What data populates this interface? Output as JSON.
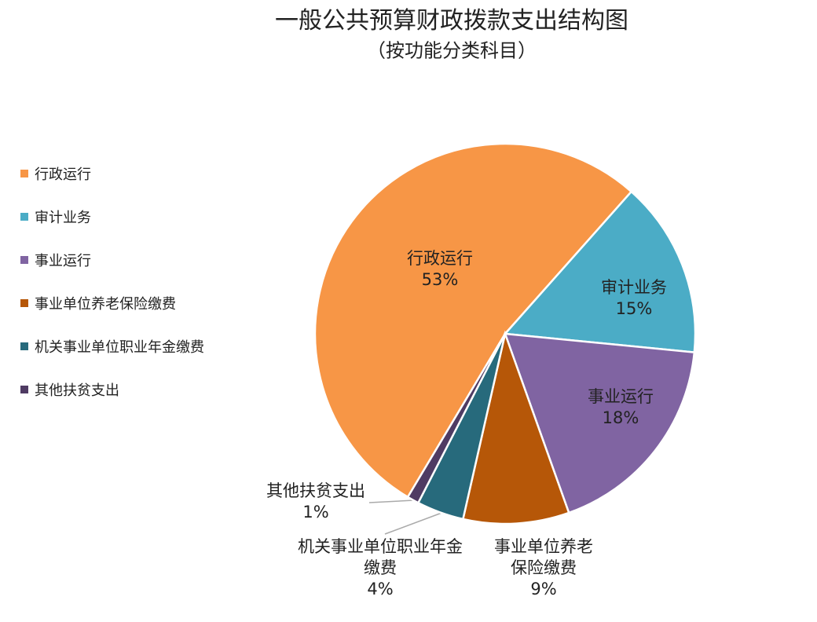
{
  "chart_data": {
    "type": "pie",
    "title": "一般公共预算财政拨款支出结构图",
    "subtitle": "（按功能分类科目）",
    "categories": [
      "行政运行",
      "审计业务",
      "事业运行",
      "事业单位养老保险缴费",
      "机关事业单位职业年金缴费",
      "其他扶贫支出"
    ],
    "values": [
      53,
      15,
      18,
      9,
      4,
      1
    ],
    "value_labels": [
      "53%",
      "15%",
      "18%",
      "9%",
      "4%",
      "1%"
    ],
    "colors": [
      "#F79646",
      "#4BACC6",
      "#8064A2",
      "#B65708",
      "#276A7C",
      "#4F3B63"
    ],
    "legend": "left"
  }
}
